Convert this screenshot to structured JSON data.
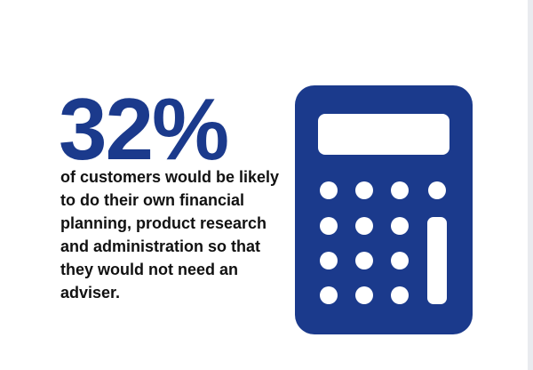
{
  "stat": {
    "percentage": "32%",
    "description": "of customers would be likely to do their own financial planning, product research and administration so that they would not need an adviser."
  },
  "icon": {
    "name": "calculator-icon",
    "color": "#1b3a8c",
    "background": "#ffffff"
  }
}
